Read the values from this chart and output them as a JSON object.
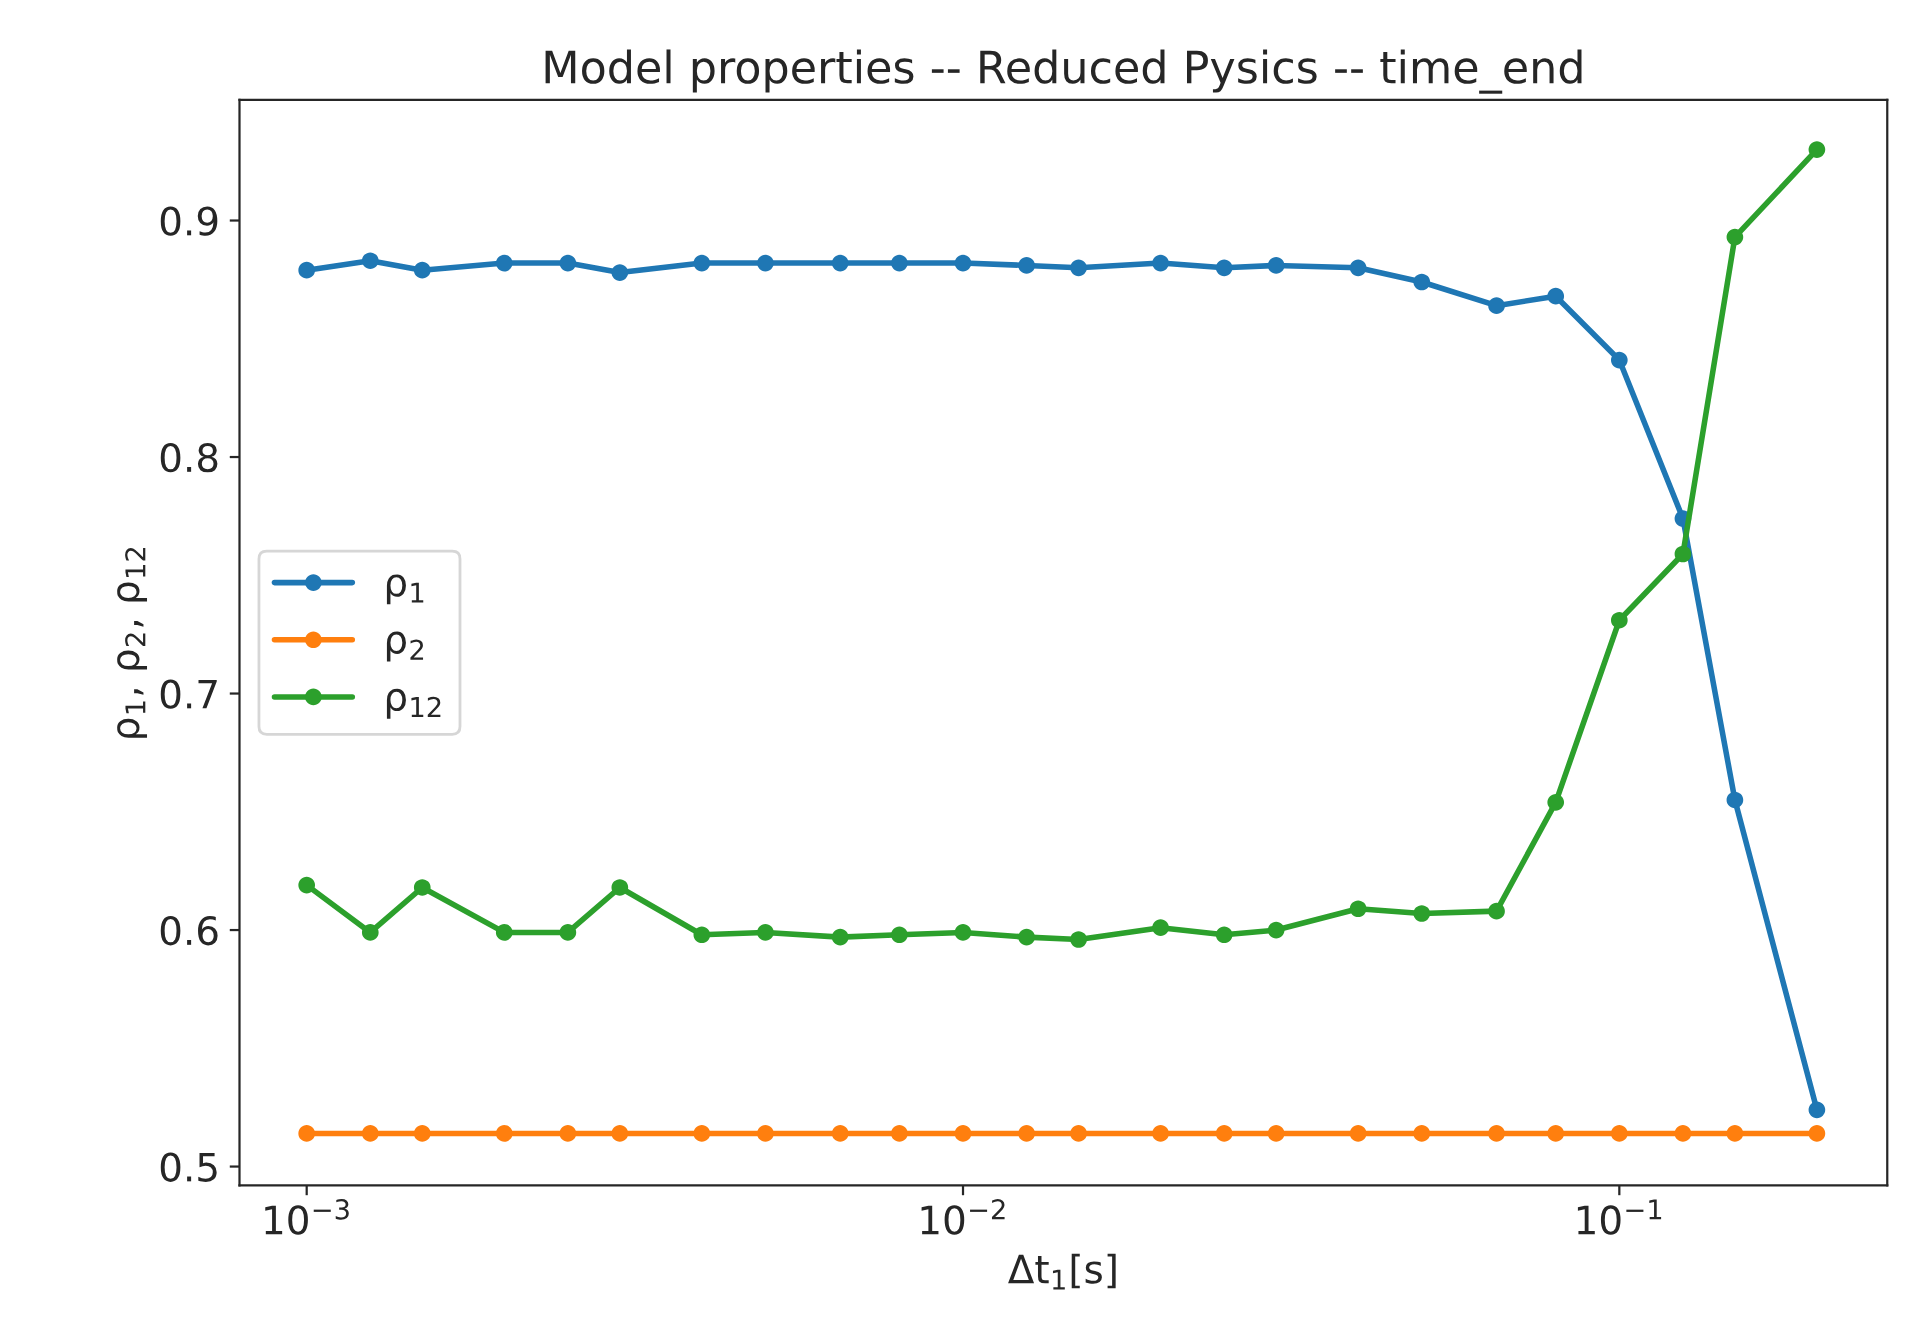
{
  "chart_data": {
    "type": "line",
    "title": "Model properties -- Reduced Pysics -- time_end",
    "xlabel": "Δt$_{1}$[s]",
    "ylabel": "ρ$_{1}$, ρ$_{2}$, ρ$_{12}$",
    "x": [
      0.001,
      0.00125,
      0.0015,
      0.002,
      0.0025,
      0.003,
      0.004,
      0.005,
      0.0065,
      0.008,
      0.01,
      0.0125,
      0.015,
      0.02,
      0.025,
      0.03,
      0.04,
      0.05,
      0.065,
      0.08,
      0.1,
      0.125,
      0.15,
      0.2
    ],
    "series": [
      {
        "name": "ρ$_{1}$",
        "color": "#1f77b4",
        "values": [
          0.879,
          0.883,
          0.879,
          0.882,
          0.882,
          0.878,
          0.882,
          0.882,
          0.882,
          0.882,
          0.882,
          0.881,
          0.88,
          0.882,
          0.88,
          0.881,
          0.88,
          0.874,
          0.864,
          0.868,
          0.841,
          0.774,
          0.655,
          0.524
        ]
      },
      {
        "name": "ρ$_{2}$",
        "color": "#ff7f0e",
        "values": [
          0.514,
          0.514,
          0.514,
          0.514,
          0.514,
          0.514,
          0.514,
          0.514,
          0.514,
          0.514,
          0.514,
          0.514,
          0.514,
          0.514,
          0.514,
          0.514,
          0.514,
          0.514,
          0.514,
          0.514,
          0.514,
          0.514,
          0.514,
          0.514
        ]
      },
      {
        "name": "ρ$_{12}$",
        "color": "#2ca02c",
        "values": [
          0.619,
          0.599,
          0.618,
          0.599,
          0.599,
          0.618,
          0.598,
          0.599,
          0.597,
          0.598,
          0.599,
          0.597,
          0.596,
          0.601,
          0.598,
          0.6,
          0.609,
          0.607,
          0.608,
          0.654,
          0.731,
          0.759,
          0.893,
          0.93
        ]
      }
    ],
    "log": "x",
    "xlim": [
      0.00079,
      0.256
    ],
    "ylim": [
      0.492,
      0.951
    ],
    "xticks": [
      {
        "value": 0.001,
        "label": "10$^{−3}$"
      },
      {
        "value": 0.01,
        "label": "10$^{−2}$"
      },
      {
        "value": 0.1,
        "label": "10$^{−1}$"
      }
    ],
    "yticks": [
      0.5,
      0.6,
      0.7,
      0.8,
      0.9
    ],
    "marker": "circle",
    "line_style": "solid",
    "legend": "left",
    "grid": false
  }
}
